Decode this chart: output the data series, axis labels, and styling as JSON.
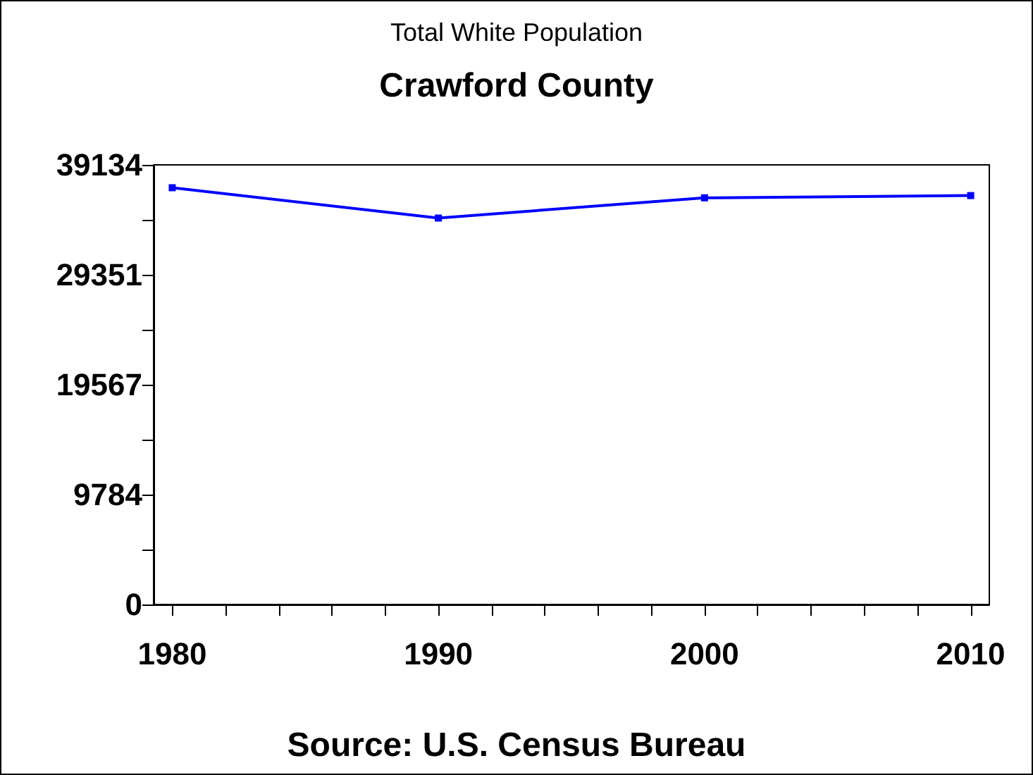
{
  "chart_data": {
    "type": "line",
    "title": "Total White Population",
    "subtitle": "Crawford County",
    "annotations": [
      "Source: U.S. Census Bureau"
    ],
    "x": [
      1980,
      1990,
      2000,
      2010
    ],
    "series": [
      {
        "color": "#0000ff",
        "values": [
          37100,
          34400,
          36200,
          36400
        ]
      }
    ],
    "xlim": [
      1979.3,
      2010.7
    ],
    "xticks": [
      1980,
      {
        "value": 1982,
        "label": null
      },
      {
        "value": 1984,
        "label": null
      },
      {
        "value": 1986,
        "label": null
      },
      {
        "value": 1988,
        "label": null
      },
      1990,
      {
        "value": 1992,
        "label": null
      },
      {
        "value": 1994,
        "label": null
      },
      {
        "value": 1996,
        "label": null
      },
      {
        "value": 1998,
        "label": null
      },
      2000,
      {
        "value": 2002,
        "label": null
      },
      {
        "value": 2004,
        "label": null
      },
      {
        "value": 2006,
        "label": null
      },
      {
        "value": 2008,
        "label": null
      },
      2010
    ],
    "ylim": [
      0,
      39134
    ],
    "yticks": [
      0,
      {
        "value": 4892,
        "label": null
      },
      9784,
      {
        "value": 14676,
        "label": null
      },
      19567,
      {
        "value": 24459,
        "label": null
      },
      29351,
      {
        "value": 34243,
        "label": null
      },
      39134
    ],
    "marker": "square",
    "line_style": "solid",
    "grid": false
  }
}
